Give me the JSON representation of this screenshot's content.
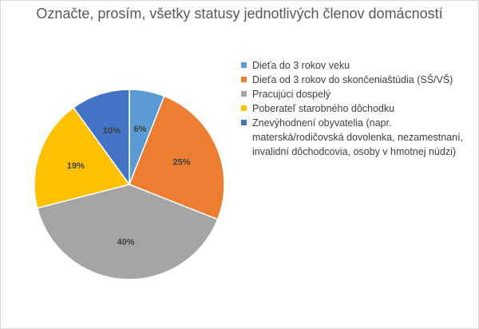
{
  "chart_data": {
    "type": "pie",
    "title": "Označte, prosím, všetky statusy jednotlivých členov domácností",
    "legend_position": "right",
    "slices": [
      {
        "label": "Dieťa do 3 rokov veku",
        "value": 6,
        "value_label": "6%",
        "color": "#5b9bd5"
      },
      {
        "label": "Dieťa od 3 rokov do skončeniaštúdia (SŠ/VŠ)",
        "value": 25,
        "value_label": "25%",
        "color": "#ed7d31"
      },
      {
        "label": "Pracujúci dospelý",
        "value": 40,
        "value_label": "40%",
        "color": "#a5a5a5"
      },
      {
        "label": "Poberateľ starobného dôchodku",
        "value": 19,
        "value_label": "19%",
        "color": "#ffc000"
      },
      {
        "label": "Znevýhodnení obyvatelia (napr. materská/rodičovská dovolenka, nezamestnaní, invalidní dôchodcovia, osoby v hmotnej núdzi)",
        "value": 10,
        "value_label": "10%",
        "color": "#4472c4"
      }
    ]
  }
}
